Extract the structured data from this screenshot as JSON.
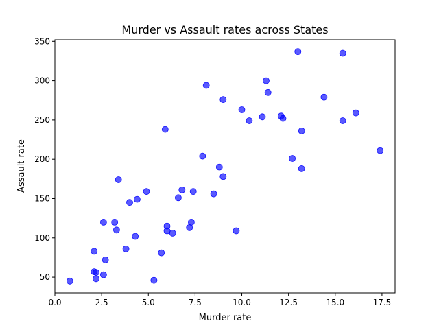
{
  "chart_data": {
    "type": "scatter",
    "title": "Murder vs Assault rates across States",
    "xlabel": "Murder rate",
    "ylabel": "Assault rate",
    "xlim": [
      0.0,
      18.2
    ],
    "ylim": [
      30,
      352
    ],
    "xticks": [
      0.0,
      2.5,
      5.0,
      7.5,
      10.0,
      12.5,
      15.0,
      17.5
    ],
    "xtick_labels": [
      "0.0",
      "2.5",
      "5.0",
      "7.5",
      "10.0",
      "12.5",
      "15.0",
      "17.5"
    ],
    "yticks": [
      50,
      100,
      150,
      200,
      250,
      300,
      350
    ],
    "ytick_labels": [
      "50",
      "100",
      "150",
      "200",
      "250",
      "300",
      "350"
    ],
    "grid": false,
    "marker_color": "#0000ff",
    "marker_alpha": 0.65,
    "points": [
      {
        "x": 13.2,
        "y": 236
      },
      {
        "x": 10.0,
        "y": 263
      },
      {
        "x": 8.1,
        "y": 294
      },
      {
        "x": 8.8,
        "y": 190
      },
      {
        "x": 9.0,
        "y": 276
      },
      {
        "x": 7.9,
        "y": 204
      },
      {
        "x": 3.3,
        "y": 110
      },
      {
        "x": 5.9,
        "y": 238
      },
      {
        "x": 15.4,
        "y": 335
      },
      {
        "x": 17.4,
        "y": 211
      },
      {
        "x": 5.3,
        "y": 46
      },
      {
        "x": 2.6,
        "y": 120
      },
      {
        "x": 10.4,
        "y": 249
      },
      {
        "x": 7.2,
        "y": 113
      },
      {
        "x": 2.2,
        "y": 56
      },
      {
        "x": 6.0,
        "y": 115
      },
      {
        "x": 9.7,
        "y": 109
      },
      {
        "x": 15.4,
        "y": 249
      },
      {
        "x": 2.1,
        "y": 83
      },
      {
        "x": 11.3,
        "y": 300
      },
      {
        "x": 4.4,
        "y": 149
      },
      {
        "x": 12.1,
        "y": 255
      },
      {
        "x": 2.7,
        "y": 72
      },
      {
        "x": 16.1,
        "y": 259
      },
      {
        "x": 9.0,
        "y": 178
      },
      {
        "x": 6.0,
        "y": 109
      },
      {
        "x": 4.3,
        "y": 102
      },
      {
        "x": 12.2,
        "y": 252
      },
      {
        "x": 2.1,
        "y": 57
      },
      {
        "x": 7.4,
        "y": 159
      },
      {
        "x": 11.4,
        "y": 285
      },
      {
        "x": 11.1,
        "y": 254
      },
      {
        "x": 13.0,
        "y": 337
      },
      {
        "x": 0.8,
        "y": 45
      },
      {
        "x": 7.3,
        "y": 120
      },
      {
        "x": 6.6,
        "y": 151
      },
      {
        "x": 4.9,
        "y": 159
      },
      {
        "x": 6.3,
        "y": 106
      },
      {
        "x": 3.4,
        "y": 174
      },
      {
        "x": 14.4,
        "y": 279
      },
      {
        "x": 3.8,
        "y": 86
      },
      {
        "x": 13.2,
        "y": 188
      },
      {
        "x": 12.7,
        "y": 201
      },
      {
        "x": 3.2,
        "y": 120
      },
      {
        "x": 2.2,
        "y": 48
      },
      {
        "x": 8.5,
        "y": 156
      },
      {
        "x": 4.0,
        "y": 145
      },
      {
        "x": 5.7,
        "y": 81
      },
      {
        "x": 2.6,
        "y": 53
      },
      {
        "x": 6.8,
        "y": 161
      }
    ]
  }
}
